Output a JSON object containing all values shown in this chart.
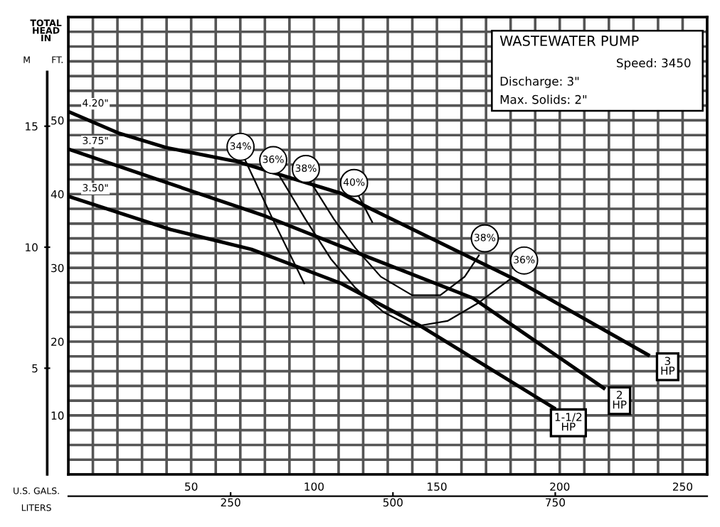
{
  "chart_data": {
    "type": "line",
    "title": "WASTEWATER PUMP",
    "xlabel": "U.S. GALS.",
    "x2label": "LITERS",
    "ylabel": "FT.",
    "y2label": "M",
    "xlim": [
      0,
      260
    ],
    "ylim": [
      2,
      64
    ],
    "x2lim": [
      0,
      984
    ],
    "y2lim": [
      0.61,
      19.51
    ],
    "xticks": [
      {
        "value": 0,
        "label": null
      },
      {
        "value": 10,
        "label": null
      },
      {
        "value": 20,
        "label": null
      },
      {
        "value": 30,
        "label": null
      },
      {
        "value": 40,
        "label": null
      },
      50,
      {
        "value": 60,
        "label": null
      },
      {
        "value": 70,
        "label": null
      },
      {
        "value": 80,
        "label": null
      },
      {
        "value": 90,
        "label": null
      },
      100,
      {
        "value": 110,
        "label": null
      },
      {
        "value": 120,
        "label": null
      },
      {
        "value": 130,
        "label": null
      },
      {
        "value": 140,
        "label": null
      },
      150,
      {
        "value": 160,
        "label": null
      },
      {
        "value": 170,
        "label": null
      },
      {
        "value": 180,
        "label": null
      },
      {
        "value": 190,
        "label": null
      },
      200,
      {
        "value": 210,
        "label": null
      },
      {
        "value": 220,
        "label": null
      },
      {
        "value": 230,
        "label": null
      },
      {
        "value": 240,
        "label": null
      },
      250,
      {
        "value": 260,
        "label": null
      }
    ],
    "yticks": [
      {
        "value": 2,
        "label": null
      },
      {
        "value": 4,
        "label": null
      },
      {
        "value": 6,
        "label": null
      },
      {
        "value": 8,
        "label": null
      },
      10,
      {
        "value": 12,
        "label": null
      },
      {
        "value": 14,
        "label": null
      },
      {
        "value": 16,
        "label": null
      },
      {
        "value": 18,
        "label": null
      },
      20,
      {
        "value": 22,
        "label": null
      },
      {
        "value": 24,
        "label": null
      },
      {
        "value": 26,
        "label": null
      },
      {
        "value": 28,
        "label": null
      },
      30,
      {
        "value": 32,
        "label": null
      },
      {
        "value": 34,
        "label": null
      },
      {
        "value": 36,
        "label": null
      },
      {
        "value": 38,
        "label": null
      },
      40,
      {
        "value": 42,
        "label": null
      },
      {
        "value": 44,
        "label": null
      },
      {
        "value": 46,
        "label": null
      },
      {
        "value": 48,
        "label": null
      },
      50,
      {
        "value": 52,
        "label": null
      },
      {
        "value": 54,
        "label": null
      },
      {
        "value": 56,
        "label": null
      },
      {
        "value": 58,
        "label": null
      },
      {
        "value": 60,
        "label": null
      },
      {
        "value": 62,
        "label": null
      },
      {
        "value": 64,
        "label": null
      }
    ],
    "x2ticks": [
      250,
      500,
      750
    ],
    "y2ticks": [
      5,
      10,
      15
    ],
    "grid": true,
    "legend": false,
    "marker": "none",
    "line_style": "solid",
    "series": [
      {
        "name": "4.20\"",
        "color": "#000000",
        "x": [
          0,
          20.2,
          39.9,
          68.8,
          111,
          122.5,
          182,
          236
        ],
        "values": [
          51.2,
          48.3,
          46.3,
          44.4,
          40.1,
          38.1,
          28.4,
          18.2
        ]
      },
      {
        "name": "3.75\"",
        "color": "#000000",
        "x": [
          0,
          80.3,
          122.5,
          164.7,
          217.9
        ],
        "values": [
          46.1,
          37.0,
          31.4,
          25.9,
          13.7
        ]
      },
      {
        "name": "3.50\"",
        "color": "#000000",
        "x": [
          0,
          41.6,
          74.6,
          111,
          144,
          197.7
        ],
        "values": [
          39.7,
          35.2,
          32.5,
          27.9,
          22.0,
          11.0
        ]
      },
      {
        "name": "34%",
        "color": "#000000",
        "x": [
          71.7,
          83.2,
          96
        ],
        "values": [
          44.8,
          36.6,
          27.9
        ]
      },
      {
        "name": "36%",
        "color": "#000000",
        "x": [
          85.0,
          96.5,
          106.9,
          116.8,
          128.3,
          139.9,
          154.3,
          167.1,
          180.3
        ],
        "values": [
          43.0,
          36.6,
          31.2,
          27.3,
          24.0,
          22.0,
          22.8,
          25.3,
          28.6
        ]
      },
      {
        "name": "38%",
        "color": "#000000",
        "x": [
          98.3,
          108.1,
          116.8,
          127.2,
          139.9,
          151.4,
          161.3,
          167.1
        ],
        "values": [
          41.8,
          36.6,
          32.7,
          28.8,
          26.3,
          26.3,
          28.8,
          31.7
        ]
      },
      {
        "name": "40%",
        "color": "#000000",
        "x": [
          117.9,
          123.7
        ],
        "values": [
          39.9,
          36.2
        ]
      }
    ],
    "annotations": [
      "TOTAL\nHEAD\nIN",
      "Speed: 3450",
      "Discharge: 3\"",
      "Max. Solids: 2\"",
      {
        "text": "36%",
        "x": 185.5,
        "y": 31.0
      },
      {
        "text": "38%",
        "x": 169.5,
        "y": 34.0
      },
      {
        "text": "3\nHP",
        "x": 243.9,
        "y": 16.6
      },
      {
        "text": "2\nHP",
        "x": 224.3,
        "y": 12.0
      },
      {
        "text": "1-1/2\nHP",
        "x": 203.5,
        "y": 9.0
      }
    ]
  }
}
